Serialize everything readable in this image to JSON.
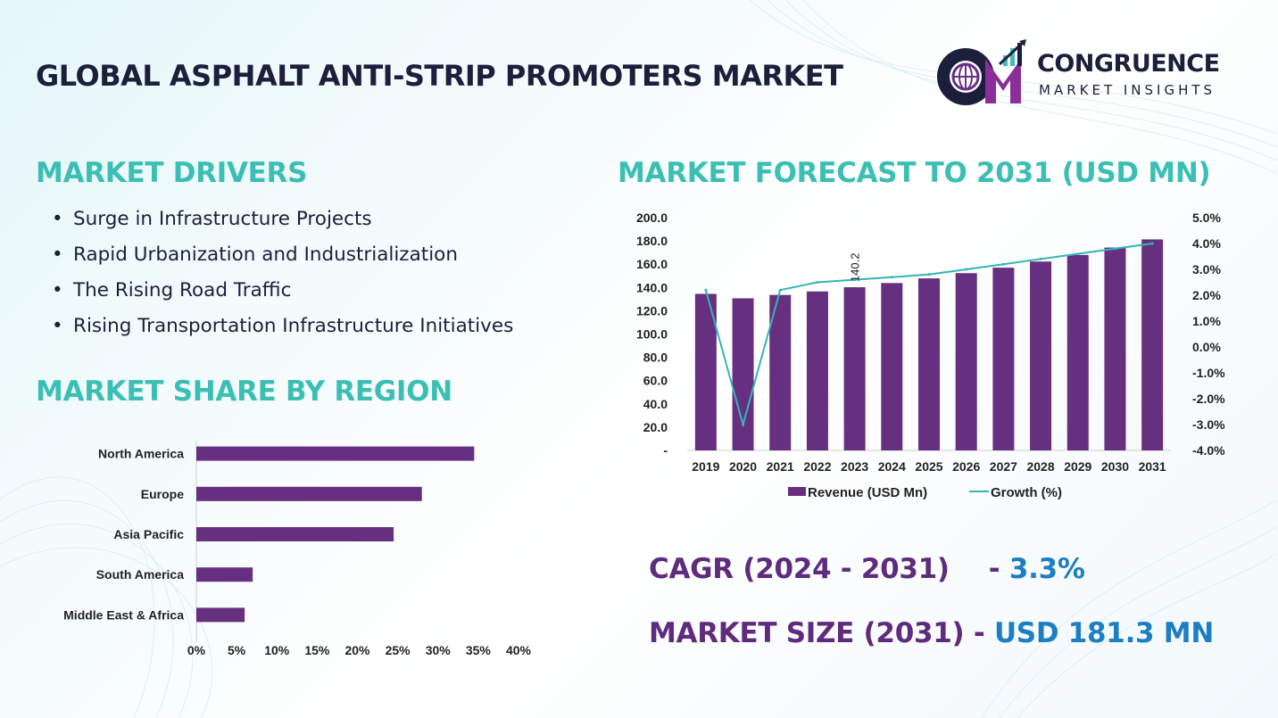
{
  "page_title": "GLOBAL ASPHALT ANTI-STRIP PROMOTERS MARKET",
  "logo": {
    "name": "CONGRUENCE",
    "subtitle": "MARKET INSIGHTS"
  },
  "drivers": {
    "heading": "MARKET DRIVERS",
    "bullet_glyph": "•",
    "items": [
      "Surge in Infrastructure Projects",
      "Rapid Urbanization and Industrialization",
      "The Rising Road Traffic",
      "Rising Transportation Infrastructure Initiatives"
    ]
  },
  "share": {
    "heading": "MARKET SHARE BY REGION"
  },
  "forecast": {
    "heading": "MARKET FORECAST TO 2031 (USD MN)"
  },
  "kpis": {
    "cagr_label": "CAGR (2024 - 2031)",
    "cagr_sep": "- ",
    "cagr_value": "3.3%",
    "size_label": "MARKET SIZE (2031)",
    "size_sep": " - ",
    "size_value": "USD  181.3 MN"
  },
  "colors": {
    "bar": "#672f80",
    "line": "#35b5b5",
    "heading": "#3bbfb4",
    "title": "#1b1f3b",
    "kpi_label": "#5e2b7e",
    "kpi_value": "#1c7fc4"
  },
  "chart_data": [
    {
      "type": "bar",
      "orientation": "horizontal",
      "categories": [
        "North America",
        "Europe",
        "Asia Pacific",
        "South America",
        "Middle East & Africa"
      ],
      "values": [
        34.5,
        28,
        24.5,
        7,
        6
      ],
      "unit": "%",
      "xlim": [
        0,
        40
      ],
      "x_ticks": [
        0,
        5,
        10,
        15,
        20,
        25,
        30,
        35,
        40
      ],
      "x_tick_labels": [
        "0%",
        "5%",
        "10%",
        "15%",
        "20%",
        "25%",
        "30%",
        "35%",
        "40%"
      ],
      "grid": false
    },
    {
      "type": "bar",
      "categories": [
        "2019",
        "2020",
        "2021",
        "2022",
        "2023",
        "2024",
        "2025",
        "2026",
        "2027",
        "2028",
        "2029",
        "2030",
        "2031"
      ],
      "series": [
        {
          "name": "Revenue (USD Mn)",
          "type": "bar",
          "axis": "left",
          "values": [
            134.5,
            130.7,
            133.6,
            136.6,
            140.2,
            143.8,
            147.8,
            152.3,
            157.0,
            162.3,
            167.9,
            174.3,
            181.3
          ]
        },
        {
          "name": "Growth (%)",
          "type": "line",
          "axis": "right",
          "values": [
            2.2,
            -3.0,
            2.2,
            2.5,
            2.6,
            2.7,
            2.8,
            3.0,
            3.2,
            3.4,
            3.6,
            3.8,
            4.0
          ]
        }
      ],
      "annotations": [
        {
          "category": "2023",
          "text": "140.2"
        }
      ],
      "y_left": {
        "lim": [
          0,
          200
        ],
        "tick_labels": [
          "-",
          "20.0",
          "40.0",
          "60.0",
          "80.0",
          "100.0",
          "120.0",
          "140.0",
          "160.0",
          "180.0",
          "200.0"
        ]
      },
      "y_right": {
        "lim": [
          -4,
          5
        ],
        "tick_labels": [
          "-4.0%",
          "-3.0%",
          "-2.0%",
          "-1.0%",
          "0.0%",
          "1.0%",
          "2.0%",
          "3.0%",
          "4.0%",
          "5.0%"
        ]
      },
      "legend": "bottom",
      "grid": false
    }
  ]
}
